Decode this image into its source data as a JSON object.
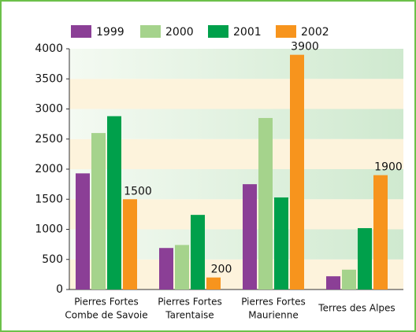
{
  "chart_data": {
    "type": "bar",
    "categories": [
      [
        "Pierres Fortes",
        "Combe de Savoie"
      ],
      [
        "Pierres Fortes",
        "Tarentaise"
      ],
      [
        "Pierres Fortes",
        "Maurienne"
      ],
      [
        "Terres des Alpes"
      ]
    ],
    "series": [
      {
        "name": "1999",
        "color": "#8b3f96",
        "values": [
          1930,
          690,
          1750,
          220
        ]
      },
      {
        "name": "2000",
        "color": "#a5d38c",
        "values": [
          2600,
          740,
          2850,
          330
        ]
      },
      {
        "name": "2001",
        "color": "#00a04b",
        "values": [
          2880,
          1240,
          1530,
          1020
        ]
      },
      {
        "name": "2002",
        "color": "#f7941d",
        "values": [
          1500,
          200,
          3900,
          1900
        ],
        "show_values": true
      }
    ],
    "ylim": [
      0,
      4000
    ],
    "yticks": [
      0,
      500,
      1000,
      1500,
      2000,
      2500,
      3000,
      3500,
      4000
    ],
    "legend": "top"
  }
}
